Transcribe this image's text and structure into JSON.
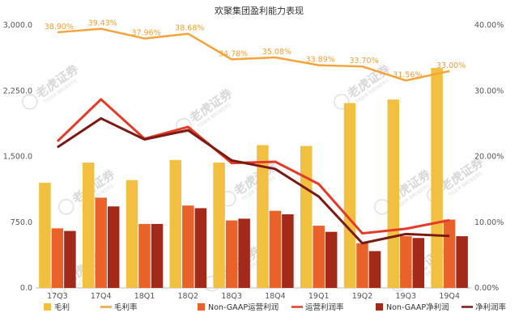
{
  "chart_data": {
    "type": "bar",
    "title": "欢聚集团盈利能力表现",
    "categories": [
      "17Q3",
      "17Q4",
      "18Q1",
      "18Q2",
      "18Q3",
      "18Q4",
      "19Q1",
      "19Q2",
      "19Q3",
      "19Q4"
    ],
    "y_left": {
      "ylim": [
        0,
        3000
      ],
      "ticks": [
        "0.0",
        "750.0",
        "1,500.0",
        "2,250.0",
        "3,000.0"
      ],
      "tick_values": [
        0,
        750,
        1500,
        2250,
        3000
      ]
    },
    "y_right": {
      "ylim": [
        0,
        40
      ],
      "ticks": [
        "0.00%",
        "10.00%",
        "20.00%",
        "30.00%",
        "40.00%"
      ],
      "tick_values": [
        0,
        10,
        20,
        30,
        40
      ]
    },
    "bar_series": [
      {
        "name": "毛利",
        "color": "#f2c040",
        "values": [
          1200,
          1430,
          1230,
          1460,
          1430,
          1630,
          1620,
          2110,
          2150,
          2510
        ]
      },
      {
        "name": "Non-GAAP运营利润",
        "color": "#e8622a",
        "values": [
          680,
          1030,
          730,
          940,
          770,
          880,
          710,
          510,
          590,
          780
        ]
      },
      {
        "name": "Non-GAAP净利润",
        "color": "#a32a18",
        "values": [
          650,
          930,
          730,
          910,
          790,
          840,
          640,
          420,
          570,
          590
        ]
      }
    ],
    "line_series": [
      {
        "name": "毛利率",
        "color": "#f5a33a",
        "values": [
          38.9,
          39.43,
          37.96,
          38.68,
          34.78,
          35.08,
          33.89,
          33.7,
          31.56,
          33.0
        ],
        "labels": [
          "38.90%",
          "39.43%",
          "37.96%",
          "38.68%",
          "34.78%",
          "35.08%",
          "33.89%",
          "33.70%",
          "31.56%",
          "33.00%"
        ]
      },
      {
        "name": "运营利润率",
        "color": "#e53a28",
        "values": [
          22.3,
          28.7,
          22.7,
          24.5,
          19.0,
          19.2,
          15.8,
          8.3,
          9.0,
          10.3
        ]
      },
      {
        "name": "净利润率",
        "color": "#7a1a12",
        "values": [
          21.4,
          25.8,
          22.6,
          24.0,
          19.4,
          18.1,
          13.9,
          6.8,
          8.2,
          7.9
        ]
      }
    ],
    "legend": {
      "placement": "bottom",
      "items": [
        {
          "name": "毛利",
          "kind": "bar",
          "color": "#f2c040"
        },
        {
          "name": "毛利率",
          "kind": "line",
          "color": "#f5a33a"
        },
        {
          "name": "Non-GAAP运营利润",
          "kind": "bar",
          "color": "#e8622a"
        },
        {
          "name": "运营利润率",
          "kind": "line",
          "color": "#e53a28"
        },
        {
          "name": "Non-GAAP净利润",
          "kind": "bar",
          "color": "#a32a18"
        },
        {
          "name": "净利润率",
          "kind": "line",
          "color": "#7a1a12"
        }
      ]
    },
    "grid": false
  },
  "watermark": {
    "text": "老虎证券",
    "sub": "TIGER BROKERS",
    "color": "#d8d8d8"
  }
}
